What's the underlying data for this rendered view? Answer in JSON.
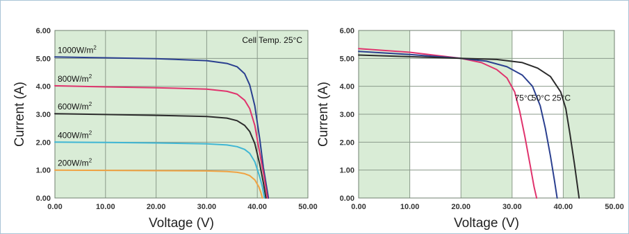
{
  "chart_data": [
    {
      "type": "line",
      "annotation": "Cell Temp. 25°C",
      "xlabel": "Voltage (V)",
      "ylabel": "Current (A)",
      "xlim": [
        0,
        50
      ],
      "ylim": [
        0,
        6
      ],
      "x_ticks": [
        "0.00",
        "10.00",
        "20.00",
        "30.00",
        "40.00",
        "50.00"
      ],
      "y_ticks": [
        "0.00",
        "1.00",
        "2.00",
        "3.00",
        "4.00",
        "5.00",
        "6.00"
      ],
      "grid": true,
      "background": "#d9ecd6",
      "series": [
        {
          "name": "1000W/m2",
          "label_main": "1000W/m",
          "label_sup": "2",
          "color": "#2a3f8f",
          "isc": 5.05,
          "voc": 42.2,
          "points": [
            [
              0,
              5.05
            ],
            [
              10,
              5.02
            ],
            [
              20,
              4.99
            ],
            [
              30,
              4.92
            ],
            [
              34,
              4.82
            ],
            [
              36,
              4.7
            ],
            [
              37.5,
              4.45
            ],
            [
              38.5,
              4.05
            ],
            [
              39.5,
              3.3
            ],
            [
              40.5,
              2.1
            ],
            [
              41.2,
              1.1
            ],
            [
              42.2,
              0
            ]
          ]
        },
        {
          "name": "800W/m2",
          "label_main": "800W/m",
          "label_sup": "2",
          "color": "#e0336d",
          "isc": 4.02,
          "voc": 42.0,
          "points": [
            [
              0,
              4.02
            ],
            [
              10,
              3.98
            ],
            [
              20,
              3.95
            ],
            [
              30,
              3.9
            ],
            [
              34,
              3.82
            ],
            [
              36,
              3.72
            ],
            [
              37.5,
              3.5
            ],
            [
              38.5,
              3.2
            ],
            [
              39.5,
              2.6
            ],
            [
              40.5,
              1.6
            ],
            [
              41.3,
              0.8
            ],
            [
              42.0,
              0
            ]
          ]
        },
        {
          "name": "600W/m2",
          "label_main": "600W/m",
          "label_sup": "2",
          "color": "#2b2b2b",
          "isc": 3.02,
          "voc": 41.7,
          "points": [
            [
              0,
              3.02
            ],
            [
              10,
              2.99
            ],
            [
              20,
              2.96
            ],
            [
              30,
              2.92
            ],
            [
              34,
              2.86
            ],
            [
              36,
              2.77
            ],
            [
              37.5,
              2.6
            ],
            [
              38.5,
              2.38
            ],
            [
              39.5,
              1.95
            ],
            [
              40.5,
              1.2
            ],
            [
              41.2,
              0.55
            ],
            [
              41.7,
              0
            ]
          ]
        },
        {
          "name": "400W/m2",
          "label_main": "400W/m",
          "label_sup": "2",
          "color": "#3fb6d4",
          "isc": 2.0,
          "voc": 41.4,
          "points": [
            [
              0,
              2.0
            ],
            [
              10,
              1.99
            ],
            [
              20,
              1.97
            ],
            [
              30,
              1.94
            ],
            [
              34,
              1.9
            ],
            [
              36,
              1.84
            ],
            [
              37.5,
              1.74
            ],
            [
              38.5,
              1.6
            ],
            [
              39.5,
              1.3
            ],
            [
              40.5,
              0.75
            ],
            [
              41.0,
              0.4
            ],
            [
              41.4,
              0
            ]
          ]
        },
        {
          "name": "200W/m2",
          "label_main": "200W/m",
          "label_sup": "2",
          "color": "#f0a242",
          "isc": 1.0,
          "voc": 41.0,
          "points": [
            [
              0,
              1.0
            ],
            [
              10,
              0.99
            ],
            [
              20,
              0.98
            ],
            [
              30,
              0.97
            ],
            [
              34,
              0.95
            ],
            [
              36,
              0.92
            ],
            [
              37.5,
              0.87
            ],
            [
              38.5,
              0.8
            ],
            [
              39.5,
              0.65
            ],
            [
              40.3,
              0.4
            ],
            [
              40.7,
              0.2
            ],
            [
              41.0,
              0
            ]
          ]
        }
      ]
    },
    {
      "type": "line",
      "xlabel": "Voltage (V)",
      "ylabel": "Current (A)",
      "xlim": [
        0,
        50
      ],
      "ylim": [
        0,
        6
      ],
      "x_ticks": [
        "0.00",
        "10.00",
        "20.00",
        "30.00",
        "40.00",
        "50.00"
      ],
      "y_ticks": [
        "0.00",
        "1.00",
        "2.00",
        "3.00",
        "4.00",
        "5.00",
        "6.00"
      ],
      "grid": true,
      "band_colors": [
        "#d9ecd6",
        "#ffffff"
      ],
      "series": [
        {
          "name": "75°C",
          "color": "#e0336d",
          "points": [
            [
              0,
              5.35
            ],
            [
              10,
              5.22
            ],
            [
              20,
              5.0
            ],
            [
              24,
              4.85
            ],
            [
              27,
              4.6
            ],
            [
              29,
              4.3
            ],
            [
              30.5,
              3.8
            ],
            [
              31.5,
              3.1
            ],
            [
              32.5,
              2.2
            ],
            [
              33.5,
              1.2
            ],
            [
              34.3,
              0.4
            ],
            [
              34.8,
              0
            ]
          ]
        },
        {
          "name": "50°C",
          "color": "#2a3f8f",
          "points": [
            [
              0,
              5.25
            ],
            [
              10,
              5.14
            ],
            [
              20,
              5.0
            ],
            [
              25,
              4.9
            ],
            [
              29,
              4.7
            ],
            [
              32,
              4.4
            ],
            [
              34,
              4.0
            ],
            [
              35.5,
              3.3
            ],
            [
              36.5,
              2.5
            ],
            [
              37.5,
              1.5
            ],
            [
              38.3,
              0.6
            ],
            [
              38.8,
              0
            ]
          ]
        },
        {
          "name": "25°C",
          "color": "#2b2b2b",
          "points": [
            [
              0,
              5.12
            ],
            [
              10,
              5.06
            ],
            [
              20,
              5.0
            ],
            [
              27,
              4.96
            ],
            [
              32,
              4.85
            ],
            [
              35,
              4.65
            ],
            [
              37.5,
              4.35
            ],
            [
              39.5,
              3.8
            ],
            [
              40.5,
              3.2
            ],
            [
              41.3,
              2.3
            ],
            [
              42.2,
              1.2
            ],
            [
              42.8,
              0.4
            ],
            [
              43.1,
              0
            ]
          ]
        }
      ]
    }
  ]
}
